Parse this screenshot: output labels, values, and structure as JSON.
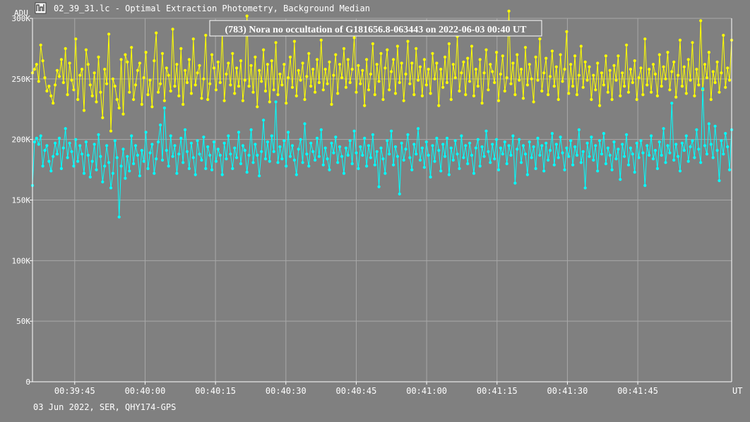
{
  "window": {
    "title": "02_39_31.lc - Optimal Extraction Photometry, Background Median",
    "icon": "chart-app-icon"
  },
  "footer": {
    "info": "03 Jun 2022, SER, QHY174-GPS"
  },
  "colors": {
    "background": "#808080",
    "grid": "#a8a8a8",
    "axis": "#ffffff",
    "series_target": "#ffff00",
    "series_comparison": "#00ffff"
  },
  "chart_data": {
    "type": "line",
    "title": "(783) Nora no occultation of G181656.8-063443 on 2022-06-03 00:40 UT",
    "ylabel": "ADU",
    "xlabel": "UT",
    "ylim": [
      0,
      300000
    ],
    "xlim": [
      "00:39:36",
      "00:42:05"
    ],
    "grid": true,
    "y_ticks": [
      {
        "value": 0,
        "label": "0"
      },
      {
        "value": 50000,
        "label": "50K"
      },
      {
        "value": 100000,
        "label": "100K"
      },
      {
        "value": 150000,
        "label": "150K"
      },
      {
        "value": 200000,
        "label": "200K"
      },
      {
        "value": 250000,
        "label": "250K"
      },
      {
        "value": 300000,
        "label": "300K"
      }
    ],
    "x_ticks": [
      "00:39:45",
      "00:40:00",
      "00:40:15",
      "00:40:30",
      "00:40:45",
      "00:41:00",
      "00:41:15",
      "00:41:30",
      "00:41:45"
    ],
    "sample_interval_s": 0.25,
    "series": [
      {
        "color": "#ffff00",
        "values": [
          255000,
          258000,
          262000,
          248000,
          278000,
          265000,
          251000,
          240000,
          244000,
          236000,
          230000,
          245000,
          257000,
          252000,
          266000,
          247000,
          275000,
          237000,
          263000,
          249000,
          241000,
          283000,
          233000,
          253000,
          258000,
          224000,
          274000,
          262000,
          245000,
          236000,
          255000,
          231000,
          268000,
          239000,
          218000,
          258000,
          246000,
          287000,
          207000,
          250000,
          244000,
          233000,
          226000,
          266000,
          221000,
          270000,
          264000,
          239000,
          276000,
          233000,
          245000,
          257000,
          263000,
          229000,
          251000,
          272000,
          237000,
          249000,
          227000,
          265000,
          288000,
          239000,
          246000,
          271000,
          232000,
          259000,
          253000,
          240000,
          291000,
          244000,
          262000,
          236000,
          275000,
          229000,
          257000,
          247000,
          266000,
          238000,
          283000,
          245000,
          255000,
          261000,
          234000,
          250000,
          286000,
          233000,
          246000,
          270000,
          259000,
          241000,
          264000,
          247000,
          288000,
          232000,
          254000,
          263000,
          245000,
          271000,
          238000,
          259000,
          244000,
          265000,
          232000,
          249000,
          302000,
          244000,
          261000,
          239000,
          268000,
          227000,
          257000,
          248000,
          274000,
          240000,
          262000,
          231000,
          265000,
          241000,
          280000,
          237000,
          254000,
          245000,
          262000,
          230000,
          251000,
          268000,
          243000,
          281000,
          236000,
          257000,
          249000,
          263000,
          233000,
          252000,
          271000,
          244000,
          258000,
          239000,
          266000,
          247000,
          282000,
          241000,
          258000,
          246000,
          264000,
          229000,
          253000,
          270000,
          238000,
          262000,
          251000,
          275000,
          243000,
          266000,
          247000,
          258000,
          284000,
          239000,
          261000,
          246000,
          257000,
          228000,
          266000,
          241000,
          254000,
          279000,
          237000,
          262000,
          248000,
          271000,
          233000,
          259000,
          274000,
          241000,
          256000,
          266000,
          238000,
          277000,
          247000,
          263000,
          232000,
          254000,
          281000,
          246000,
          263000,
          237000,
          275000,
          249000,
          260000,
          236000,
          266000,
          245000,
          258000,
          238000,
          271000,
          250000,
          263000,
          228000,
          258000,
          243000,
          268000,
          247000,
          279000,
          233000,
          262000,
          251000,
          285000,
          240000,
          255000,
          264000,
          237000,
          267000,
          248000,
          277000,
          236000,
          258000,
          244000,
          266000,
          230000,
          255000,
          274000,
          241000,
          262000,
          256000,
          247000,
          272000,
          232000,
          254000,
          269000,
          240000,
          251000,
          306000,
          246000,
          263000,
          237000,
          270000,
          249000,
          258000,
          234000,
          276000,
          245000,
          262000,
          250000,
          231000,
          268000,
          249000,
          283000,
          240000,
          255000,
          267000,
          237000,
          252000,
          273000,
          244000,
          260000,
          233000,
          270000,
          248000,
          258000,
          289000,
          238000,
          262000,
          244000,
          269000,
          237000,
          253000,
          277000,
          243000,
          264000,
          249000,
          260000,
          233000,
          253000,
          241000,
          263000,
          228000,
          255000,
          245000,
          269000,
          239000,
          257000,
          233000,
          261000,
          249000,
          269000,
          236000,
          255000,
          244000,
          278000,
          239000,
          258000,
          247000,
          265000,
          233000,
          251000,
          259000,
          237000,
          283000,
          245000,
          258000,
          239000,
          262000,
          254000,
          236000,
          270000,
          244000,
          260000,
          250000,
          272000,
          241000,
          256000,
          264000,
          235000,
          253000,
          282000,
          244000,
          260000,
          238000,
          266000,
          249000,
          280000,
          236000,
          258000,
          245000,
          298000,
          241000,
          262000,
          251000,
          272000,
          233000,
          256000,
          247000,
          264000,
          239000,
          255000,
          286000,
          243000,
          259000,
          249000,
          282000
        ]
      },
      {
        "color": "#00ffff",
        "values": [
          162000,
          198000,
          201000,
          196000,
          203000,
          178000,
          191000,
          195000,
          182000,
          174000,
          186000,
          197000,
          188000,
          201000,
          176000,
          193000,
          209000,
          185000,
          197000,
          190000,
          178000,
          200000,
          182000,
          195000,
          188000,
          172000,
          198000,
          187000,
          169000,
          182000,
          196000,
          175000,
          204000,
          186000,
          165000,
          178000,
          195000,
          181000,
          160000,
          172000,
          199000,
          185000,
          136000,
          178000,
          192000,
          168000,
          186000,
          174000,
          203000,
          180000,
          195000,
          187000,
          170000,
          191000,
          182000,
          206000,
          176000,
          189000,
          196000,
          172000,
          184000,
          198000,
          212000,
          183000,
          226000,
          191000,
          178000,
          203000,
          186000,
          195000,
          172000,
          188000,
          201000,
          181000,
          208000,
          190000,
          176000,
          197000,
          185000,
          171000,
          199000,
          188000,
          183000,
          202000,
          176000,
          194000,
          187000,
          175000,
          198000,
          182000,
          192000,
          187000,
          171000,
          197000,
          184000,
          203000,
          188000,
          176000,
          193000,
          185000,
          206000,
          180000,
          195000,
          191000,
          173000,
          187000,
          208000,
          181000,
          196000,
          187000,
          170000,
          190000,
          216000,
          184000,
          198000,
          182000,
          203000,
          190000,
          231000,
          181000,
          194000,
          184000,
          199000,
          178000,
          206000,
          186000,
          195000,
          183000,
          171000,
          192000,
          200000,
          181000,
          213000,
          188000,
          178000,
          197000,
          190000,
          183000,
          201000,
          186000,
          208000,
          179000,
          193000,
          184000,
          175000,
          197000,
          189000,
          202000,
          181000,
          194000,
          186000,
          172000,
          193000,
          187000,
          199000,
          180000,
          207000,
          189000,
          176000,
          194000,
          187000,
          201000,
          178000,
          195000,
          185000,
          204000,
          179000,
          190000,
          161000,
          193000,
          184000,
          172000,
          199000,
          188000,
          207000,
          179000,
          194000,
          186000,
          155000,
          197000,
          183000,
          192000,
          204000,
          185000,
          175000,
          196000,
          188000,
          209000,
          183000,
          193000,
          177000,
          198000,
          187000,
          169000,
          195000,
          182000,
          201000,
          191000,
          174000,
          196000,
          186000,
          201000,
          171000,
          193000,
          183000,
          199000,
          188000,
          176000,
          203000,
          185000,
          195000,
          180000,
          197000,
          187000,
          172000,
          193000,
          200000,
          178000,
          194000,
          186000,
          207000,
          190000,
          181000,
          196000,
          184000,
          200000,
          175000,
          193000,
          188000,
          198000,
          180000,
          195000,
          187000,
          203000,
          164000,
          192000,
          200000,
          181000,
          195000,
          188000,
          171000,
          198000,
          185000,
          194000,
          176000,
          201000,
          187000,
          195000,
          174000,
          197000,
          183000,
          191000,
          205000,
          179000,
          196000,
          185000,
          202000,
          189000,
          175000,
          193000,
          186000,
          199000,
          179000,
          194000,
          187000,
          208000,
          181000,
          190000,
          160000,
          197000,
          186000,
          202000,
          183000,
          195000,
          174000,
          199000,
          188000,
          205000,
          180000,
          193000,
          187000,
          175000,
          198000,
          184000,
          192000,
          167000,
          196000,
          186000,
          204000,
          179000,
          193000,
          188000,
          173000,
          197000,
          185000,
          199000,
          189000,
          162000,
          195000,
          187000,
          203000,
          184000,
          191000,
          176000,
          198000,
          187000,
          209000,
          181000,
          195000,
          189000,
          230000,
          183000,
          196000,
          186000,
          174000,
          197000,
          191000,
          203000,
          182000,
          194000,
          199000,
          185000,
          208000,
          192000,
          181000,
          242000,
          195000,
          188000,
          213000,
          196000,
          185000,
          211000,
          191000,
          166000,
          199000,
          188000,
          205000,
          194000,
          175000,
          208000
        ]
      }
    ]
  }
}
